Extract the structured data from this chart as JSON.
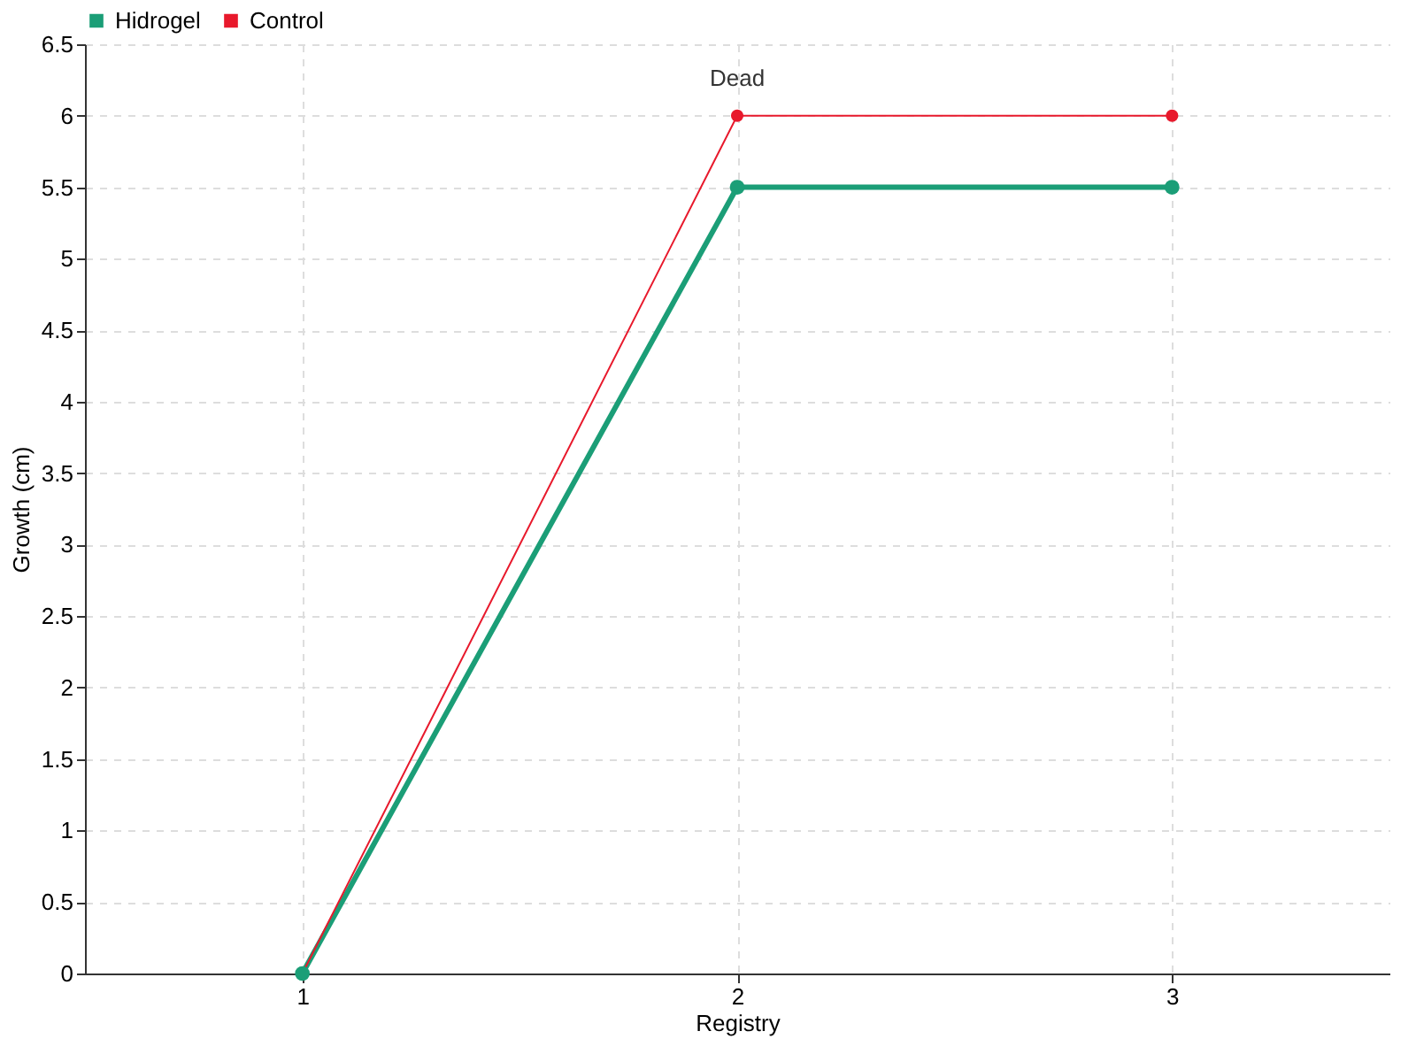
{
  "chart_data": {
    "type": "line",
    "xlabel": "Registry",
    "ylabel": "Growth (cm)",
    "x": [
      1,
      2,
      3
    ],
    "series": [
      {
        "name": "Hidrogel",
        "color": "#1b9e77",
        "values": [
          0,
          5.5,
          5.5
        ]
      },
      {
        "name": "Control",
        "color": "#e8192c",
        "values": [
          0,
          6,
          6
        ]
      }
    ],
    "xlim": [
      0.5,
      3.5
    ],
    "xticks": [
      1,
      2,
      3
    ],
    "ylim": [
      0,
      6.5
    ],
    "yticks": [
      0,
      0.5,
      1,
      1.5,
      2,
      2.5,
      3,
      3.5,
      4,
      4.5,
      5,
      5.5,
      6,
      6.5
    ],
    "annotations": [
      {
        "text": "Dead",
        "x": 2,
        "y": 6
      }
    ],
    "grid": true,
    "legend": "top left",
    "marker": "circle",
    "line_style": "solid"
  }
}
